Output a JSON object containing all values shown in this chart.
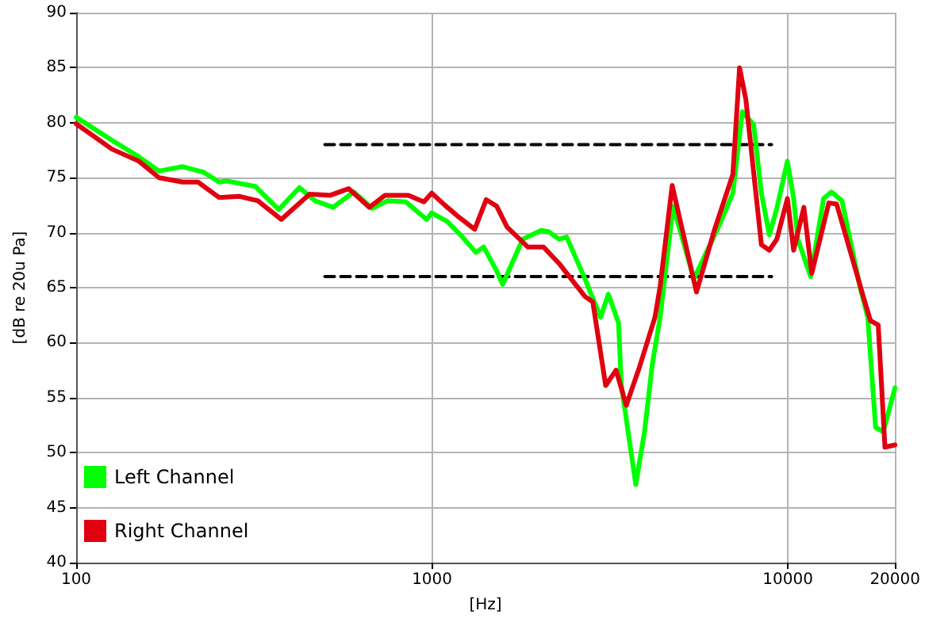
{
  "chart_data": {
    "type": "line",
    "xlabel": "[Hz]",
    "ylabel": "[dB re 20u Pa]",
    "log": "x",
    "xlim": [
      100,
      20000
    ],
    "xticks": [
      100,
      1000,
      10000,
      20000
    ],
    "ylim": [
      40,
      90
    ],
    "yticks": [
      40,
      45,
      50,
      55,
      60,
      65,
      70,
      75,
      80,
      85,
      90
    ],
    "grid": true,
    "legend": "bottom left",
    "marker": "none",
    "line_style": "solid",
    "series": [
      {
        "name": "Left Channel",
        "color": "#00ff00",
        "x": [
          100,
          126,
          150,
          171,
          199,
          228,
          252,
          265,
          319,
          371,
          424,
          469,
          527,
          603,
          679,
          750,
          844,
          966,
          998,
          1104,
          1202,
          1328,
          1397,
          1520,
          1580,
          1798,
          2021,
          2125,
          2275,
          2390,
          2690,
          2975,
          3130,
          3343,
          3403,
          3737,
          3955,
          4158,
          4375,
          4760,
          5445,
          6440,
          7005,
          7447,
          8017,
          8425,
          8870,
          9310,
          9970,
          10380,
          10670,
          11590,
          12600,
          13260,
          14190,
          15940,
          16770,
          17640,
          18540,
          20000
        ],
        "values": [
          80.5,
          78.4,
          76.9,
          75.6,
          76.0,
          75.5,
          74.6,
          74.7,
          74.2,
          72.1,
          74.1,
          72.9,
          72.3,
          73.7,
          72.2,
          72.9,
          72.8,
          71.2,
          71.8,
          71.0,
          69.8,
          68.2,
          68.7,
          66.5,
          65.3,
          69.4,
          70.2,
          70.1,
          69.4,
          69.6,
          65.8,
          62.3,
          64.4,
          61.8,
          56.2,
          47.1,
          51.9,
          58.0,
          62.3,
          72.4,
          65.8,
          70.8,
          73.6,
          81,
          79.8,
          73.6,
          69.8,
          72.2,
          76.5,
          73.1,
          69.4,
          66.0,
          73.1,
          73.7,
          72.9,
          65.1,
          62.3,
          52.3,
          51.9,
          55.9
        ]
      },
      {
        "name": "Right Channel",
        "color": "#e00010",
        "x": [
          100,
          126,
          150,
          171,
          199,
          220,
          252,
          288,
          324,
          377,
          453,
          518,
          583,
          667,
          738,
          858,
          949,
          998,
          1086,
          1181,
          1318,
          1420,
          1520,
          1626,
          1858,
          2056,
          2275,
          2432,
          2690,
          2830,
          3076,
          3290,
          3515,
          3830,
          4232,
          4375,
          4730,
          5535,
          6225,
          7005,
          7315,
          7620,
          8425,
          8870,
          9310,
          9970,
          10380,
          11090,
          11670,
          13030,
          13710,
          16220,
          17060,
          17940,
          18740,
          20000
        ],
        "values": [
          79.9,
          77.6,
          76.5,
          75.0,
          74.6,
          74.6,
          73.2,
          73.3,
          72.9,
          71.2,
          73.5,
          73.4,
          74.0,
          72.3,
          73.4,
          73.4,
          72.8,
          73.6,
          72.5,
          71.5,
          70.3,
          73.0,
          72.4,
          70.5,
          68.7,
          68.7,
          67.2,
          66.0,
          64.2,
          63.7,
          56.1,
          57.5,
          54.3,
          57.8,
          62.3,
          65.1,
          74.3,
          64.6,
          70.3,
          75.3,
          85.0,
          82.1,
          68.9,
          68.4,
          69.4,
          73.1,
          68.4,
          72.3,
          66.3,
          72.7,
          72.6,
          64.4,
          62.0,
          61.6,
          50.5,
          50.7
        ]
      },
      {
        "color": "#000000",
        "line_style": "dashed",
        "x": [
          500,
          9000
        ],
        "values": [
          78,
          78
        ]
      },
      {
        "color": "#000000",
        "line_style": "dashed",
        "x": [
          500,
          9000
        ],
        "values": [
          66,
          66
        ]
      }
    ]
  }
}
